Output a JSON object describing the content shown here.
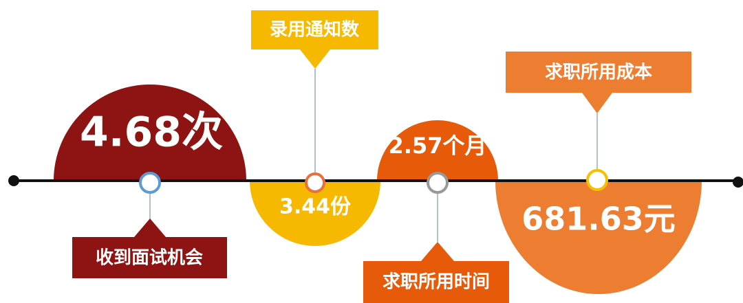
{
  "items": [
    {
      "value": "4.68次",
      "label": "收到面试机会"
    },
    {
      "value": "3.44份",
      "label": "录用通知数"
    },
    {
      "value": "2.57个月",
      "label": "求职所用时间"
    },
    {
      "value": "681.63元",
      "label": "求职所用成本"
    }
  ]
}
